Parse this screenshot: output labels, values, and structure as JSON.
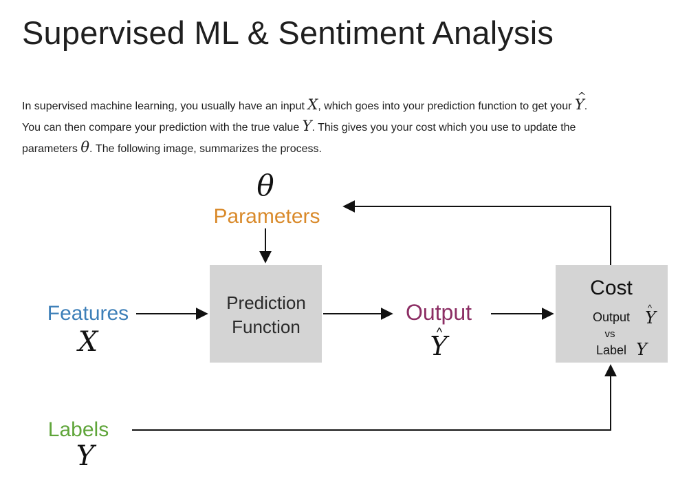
{
  "title": "Supervised ML & Sentiment Analysis",
  "intro": {
    "l1a": "In supervised machine learning, you usually have an input ",
    "l1b": ", which goes into your prediction function to get your ",
    "l1c": ".",
    "l2a": "You can then compare your prediction with the true value ",
    "l2b": ". This gives you your cost which you use to update the",
    "l3a": "parameters ",
    "l3b": ". The following image, summarizes the process.",
    "sym_x": "X",
    "sym_y": "Y",
    "sym_theta": "θ"
  },
  "diagram": {
    "theta": "θ",
    "parameters": "Parameters",
    "prediction_l1": "Prediction",
    "prediction_l2": "Function",
    "features": "Features",
    "x": "X",
    "output": "Output",
    "y_hat": "Y",
    "cost": "Cost",
    "cost_output": "Output",
    "vs": "vs",
    "cost_label": "Label",
    "cost_y": "Y",
    "labels": "Labels",
    "labels_y": "Y"
  },
  "colors": {
    "parameters": "#d98a2b",
    "features": "#3d7fb8",
    "output": "#8c2e64",
    "labels": "#5fa53a",
    "box": "#d4d4d4"
  }
}
